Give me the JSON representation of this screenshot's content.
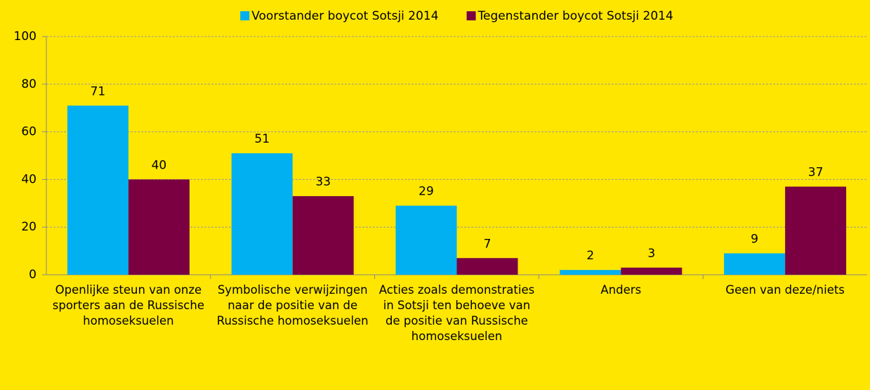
{
  "chart_data": {
    "type": "bar",
    "categories": [
      "Openlijke steun van onze sporters aan de Russische homoseksuelen",
      "Symbolische verwijzingen naar de positie van de Russische homoseksuelen",
      "Acties zoals demonstraties in Sotsji ten behoeve van de positie van Russische homoseksuelen",
      "Anders",
      "Geen van deze/niets"
    ],
    "series": [
      {
        "name": "Voorstander boycot Sotsji 2014",
        "color": "#00b0f0",
        "values": [
          71,
          51,
          29,
          2,
          9
        ]
      },
      {
        "name": "Tegenstander boycot Sotsji 2014",
        "color": "#7b0041",
        "values": [
          40,
          33,
          7,
          3,
          37
        ]
      }
    ],
    "ylim": [
      0,
      100
    ],
    "yticks": [
      0,
      20,
      40,
      60,
      80,
      100
    ],
    "grid": true,
    "legend": "top"
  }
}
